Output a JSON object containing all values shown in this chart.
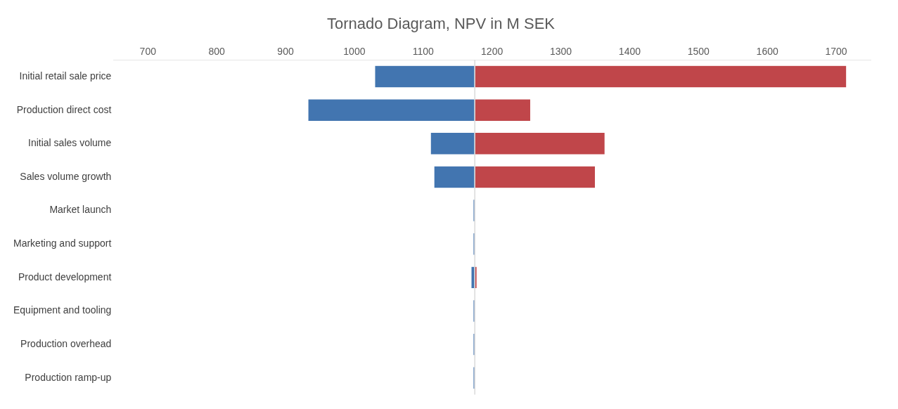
{
  "chart_data": {
    "type": "bar",
    "orientation": "horizontal",
    "title": "Tornado Diagram, NPV in M SEK",
    "categories": [
      "Initial retail sale price",
      "Production direct cost",
      "Initial sales volume",
      "Sales volume growth",
      "Market launch",
      "Marketing and support",
      "Product development",
      "Equipment and tooling",
      "Production overhead",
      "Production ramp-up"
    ],
    "series": [
      {
        "color": "#4275b0",
        "base": [
          1030,
          933,
          1111,
          1116,
          1173,
          1173,
          1170,
          1173,
          1173,
          1173
        ],
        "values": [
          145,
          242,
          64,
          59,
          2,
          2,
          5,
          2,
          2,
          2
        ]
      },
      {
        "color": "#c0464a",
        "base": [
          1175,
          1175,
          1175,
          1175,
          null,
          null,
          1175,
          null,
          null,
          null
        ],
        "values": [
          540,
          81,
          189,
          175,
          null,
          null,
          3,
          null,
          null,
          null
        ]
      }
    ],
    "xlim": [
      650,
      1750
    ],
    "xticks": [
      700,
      800,
      900,
      1000,
      1100,
      1200,
      1300,
      1400,
      1500,
      1600,
      1700
    ],
    "ref_lines": [
      {
        "axis": "x",
        "value": 1175,
        "color": "#d9d9d9"
      }
    ],
    "grid": false,
    "legend": false
  }
}
